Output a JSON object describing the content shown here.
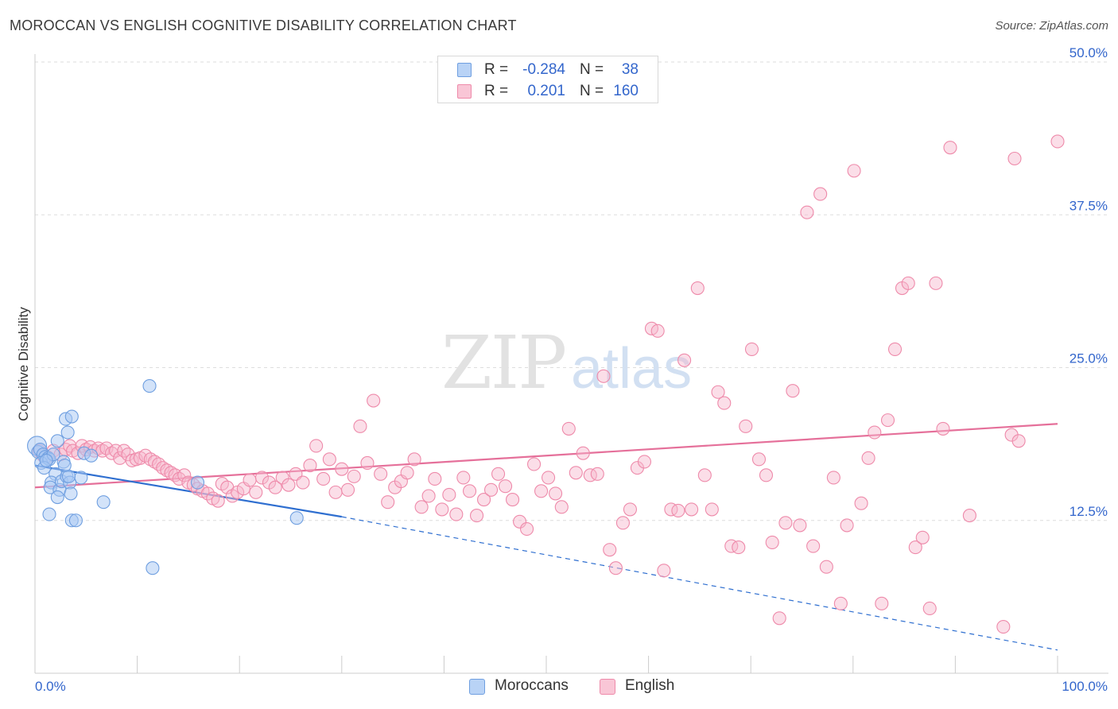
{
  "title": "MOROCCAN VS ENGLISH COGNITIVE DISABILITY CORRELATION CHART",
  "source": "Source: ZipAtlas.com",
  "watermark": {
    "zip": "ZIP",
    "atlas": "atlas"
  },
  "colors": {
    "blue_fill": "#a8c8f4",
    "blue_stroke": "#6f9fe0",
    "blue_line": "#2f6fd0",
    "pink_fill": "#f7b6cb",
    "pink_stroke": "#ee8aaa",
    "pink_line": "#e5709a",
    "value_text": "#3366cc",
    "grid": "#dddddd"
  },
  "legend_top": [
    {
      "swatch": "blue",
      "r_label": "R =",
      "r_value": "-0.284",
      "n_label": "N =",
      "n_value": "38"
    },
    {
      "swatch": "pink",
      "r_label": "R =",
      "r_value": "0.201",
      "n_label": "N =",
      "n_value": "160"
    }
  ],
  "legend_bottom": [
    {
      "swatch": "blue",
      "label": "Moroccans"
    },
    {
      "swatch": "pink",
      "label": "English"
    }
  ],
  "chart_data": {
    "type": "scatter",
    "ylabel": "Cognitive Disability",
    "xlim": [
      0,
      100
    ],
    "ylim": [
      0,
      50
    ],
    "x_tick_labels": [
      {
        "value": 0,
        "label": "0.0%"
      },
      {
        "value": 100,
        "label": "100.0%"
      }
    ],
    "y_tick_labels": [
      {
        "value": 12.5,
        "label": "12.5%"
      },
      {
        "value": 25.0,
        "label": "25.0%"
      },
      {
        "value": 37.5,
        "label": "37.5%"
      },
      {
        "value": 50.0,
        "label": "50.0%"
      }
    ],
    "grid": true,
    "series": [
      {
        "name": "Moroccans",
        "color": "blue",
        "trend": {
          "solid": [
            [
              0,
              17.0
            ],
            [
              30,
              12.8
            ]
          ],
          "dashed": [
            [
              30,
              12.8
            ],
            [
              100,
              1.9
            ]
          ]
        },
        "points": [
          [
            0.2,
            18.6
          ],
          [
            0.3,
            18.1
          ],
          [
            0.5,
            18.3
          ],
          [
            0.8,
            17.9
          ],
          [
            1.0,
            17.7
          ],
          [
            1.3,
            17.6
          ],
          [
            0.6,
            17.2
          ],
          [
            1.4,
            17.5
          ],
          [
            1.8,
            17.9
          ],
          [
            2.2,
            19.0
          ],
          [
            2.8,
            17.3
          ],
          [
            3.2,
            19.7
          ],
          [
            3.0,
            20.8
          ],
          [
            3.6,
            21.0
          ],
          [
            2.0,
            16.3
          ],
          [
            1.6,
            15.6
          ],
          [
            1.5,
            15.2
          ],
          [
            2.4,
            15.0
          ],
          [
            2.6,
            15.7
          ],
          [
            3.1,
            16.1
          ],
          [
            3.4,
            15.6
          ],
          [
            2.2,
            14.4
          ],
          [
            3.5,
            14.7
          ],
          [
            4.5,
            16.0
          ],
          [
            4.8,
            18.0
          ],
          [
            5.5,
            17.8
          ],
          [
            1.4,
            13.0
          ],
          [
            3.6,
            12.5
          ],
          [
            4.0,
            12.5
          ],
          [
            6.7,
            14.0
          ],
          [
            11.2,
            23.5
          ],
          [
            11.5,
            8.6
          ],
          [
            15.9,
            15.6
          ],
          [
            25.6,
            12.7
          ],
          [
            0.9,
            16.8
          ],
          [
            1.1,
            17.4
          ],
          [
            3.3,
            16.1
          ],
          [
            2.9,
            17.0
          ]
        ]
      },
      {
        "name": "English",
        "color": "pink",
        "trend": {
          "solid": [
            [
              0,
              15.2
            ],
            [
              100,
              20.4
            ]
          ]
        },
        "points": [
          [
            0.4,
            18.2
          ],
          [
            0.8,
            17.8
          ],
          [
            1.2,
            17.7
          ],
          [
            1.8,
            18.2
          ],
          [
            2.5,
            17.9
          ],
          [
            3.0,
            18.3
          ],
          [
            3.4,
            18.6
          ],
          [
            3.7,
            18.2
          ],
          [
            4.2,
            18.0
          ],
          [
            4.6,
            18.6
          ],
          [
            5.0,
            18.3
          ],
          [
            5.4,
            18.5
          ],
          [
            5.8,
            18.2
          ],
          [
            6.2,
            18.4
          ],
          [
            6.6,
            18.2
          ],
          [
            7.0,
            18.4
          ],
          [
            7.5,
            18.0
          ],
          [
            7.9,
            18.2
          ],
          [
            8.3,
            17.6
          ],
          [
            8.7,
            18.2
          ],
          [
            9.1,
            17.9
          ],
          [
            9.5,
            17.4
          ],
          [
            9.9,
            17.5
          ],
          [
            10.3,
            17.6
          ],
          [
            10.8,
            17.8
          ],
          [
            11.3,
            17.5
          ],
          [
            11.7,
            17.3
          ],
          [
            12.1,
            17.1
          ],
          [
            12.5,
            16.8
          ],
          [
            12.9,
            16.6
          ],
          [
            13.3,
            16.4
          ],
          [
            13.7,
            16.2
          ],
          [
            14.1,
            15.9
          ],
          [
            14.6,
            16.2
          ],
          [
            15.0,
            15.6
          ],
          [
            15.5,
            15.4
          ],
          [
            15.9,
            15.1
          ],
          [
            16.4,
            14.9
          ],
          [
            16.9,
            14.7
          ],
          [
            17.4,
            14.3
          ],
          [
            17.9,
            14.1
          ],
          [
            18.3,
            15.5
          ],
          [
            18.8,
            15.2
          ],
          [
            19.3,
            14.5
          ],
          [
            19.8,
            14.8
          ],
          [
            20.4,
            15.1
          ],
          [
            21.0,
            15.8
          ],
          [
            21.6,
            14.8
          ],
          [
            22.2,
            16.0
          ],
          [
            22.9,
            15.6
          ],
          [
            23.5,
            15.2
          ],
          [
            24.2,
            16.0
          ],
          [
            24.8,
            15.4
          ],
          [
            25.5,
            16.3
          ],
          [
            26.2,
            15.6
          ],
          [
            26.9,
            17.0
          ],
          [
            27.5,
            18.6
          ],
          [
            28.2,
            15.9
          ],
          [
            28.8,
            17.5
          ],
          [
            29.4,
            14.8
          ],
          [
            30.0,
            16.7
          ],
          [
            30.6,
            15.0
          ],
          [
            31.2,
            16.1
          ],
          [
            31.8,
            20.2
          ],
          [
            32.5,
            17.2
          ],
          [
            33.1,
            22.3
          ],
          [
            33.8,
            16.3
          ],
          [
            34.5,
            14.0
          ],
          [
            35.2,
            15.2
          ],
          [
            35.8,
            15.7
          ],
          [
            36.4,
            16.4
          ],
          [
            37.1,
            17.5
          ],
          [
            37.8,
            13.6
          ],
          [
            38.5,
            14.5
          ],
          [
            39.1,
            15.9
          ],
          [
            39.8,
            13.4
          ],
          [
            40.5,
            14.6
          ],
          [
            41.2,
            13.0
          ],
          [
            41.9,
            16.0
          ],
          [
            42.5,
            14.9
          ],
          [
            43.2,
            12.9
          ],
          [
            43.9,
            14.2
          ],
          [
            44.6,
            15.0
          ],
          [
            45.3,
            16.3
          ],
          [
            46.0,
            15.3
          ],
          [
            46.7,
            14.2
          ],
          [
            47.4,
            12.4
          ],
          [
            48.1,
            11.8
          ],
          [
            48.8,
            17.1
          ],
          [
            49.5,
            14.9
          ],
          [
            50.2,
            16.0
          ],
          [
            50.9,
            14.7
          ],
          [
            51.5,
            13.6
          ],
          [
            52.2,
            20.0
          ],
          [
            52.9,
            16.4
          ],
          [
            53.6,
            18.0
          ],
          [
            54.3,
            16.2
          ],
          [
            55.0,
            16.3
          ],
          [
            55.6,
            24.3
          ],
          [
            56.2,
            10.1
          ],
          [
            56.8,
            8.6
          ],
          [
            57.5,
            12.3
          ],
          [
            58.2,
            13.4
          ],
          [
            58.9,
            16.8
          ],
          [
            59.6,
            17.3
          ],
          [
            60.3,
            28.2
          ],
          [
            60.9,
            28.0
          ],
          [
            61.5,
            8.4
          ],
          [
            62.2,
            13.4
          ],
          [
            62.9,
            13.3
          ],
          [
            63.5,
            25.6
          ],
          [
            64.2,
            13.4
          ],
          [
            64.8,
            31.5
          ],
          [
            65.5,
            16.2
          ],
          [
            66.2,
            13.4
          ],
          [
            66.8,
            23.0
          ],
          [
            67.4,
            22.1
          ],
          [
            68.1,
            10.4
          ],
          [
            68.8,
            10.3
          ],
          [
            69.5,
            20.2
          ],
          [
            70.1,
            26.5
          ],
          [
            70.8,
            17.5
          ],
          [
            71.5,
            16.2
          ],
          [
            72.1,
            10.7
          ],
          [
            72.8,
            4.5
          ],
          [
            73.4,
            12.3
          ],
          [
            74.1,
            23.1
          ],
          [
            74.8,
            12.1
          ],
          [
            75.5,
            37.7
          ],
          [
            76.1,
            10.4
          ],
          [
            76.8,
            39.2
          ],
          [
            77.4,
            8.7
          ],
          [
            78.1,
            16.0
          ],
          [
            78.8,
            5.7
          ],
          [
            79.4,
            12.1
          ],
          [
            80.1,
            41.1
          ],
          [
            80.8,
            13.9
          ],
          [
            81.5,
            17.6
          ],
          [
            82.1,
            19.7
          ],
          [
            82.8,
            5.7
          ],
          [
            83.4,
            20.7
          ],
          [
            84.1,
            26.5
          ],
          [
            84.8,
            31.5
          ],
          [
            85.4,
            31.9
          ],
          [
            86.1,
            10.3
          ],
          [
            86.8,
            11.1
          ],
          [
            87.5,
            5.3
          ],
          [
            88.1,
            31.9
          ],
          [
            88.8,
            20.0
          ],
          [
            89.5,
            43.0
          ],
          [
            91.4,
            12.9
          ],
          [
            94.7,
            3.8
          ],
          [
            95.5,
            19.5
          ],
          [
            95.8,
            42.1
          ],
          [
            96.2,
            19.0
          ],
          [
            100.0,
            43.5
          ]
        ]
      }
    ]
  }
}
